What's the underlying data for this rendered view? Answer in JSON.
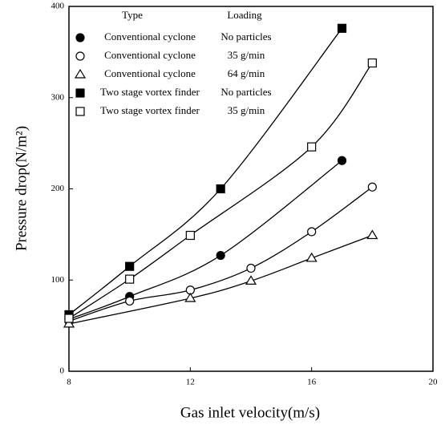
{
  "chart_data": {
    "type": "scatter",
    "xlabel": "Gas inlet velocity(m/s)",
    "ylabel": "Pressure drop(N/m²)",
    "legend_headers": [
      "Type",
      "Loading"
    ],
    "xlim": [
      8,
      20
    ],
    "xticks": [
      8,
      12,
      16,
      20
    ],
    "ylim": [
      0,
      400
    ],
    "yticks": [
      0,
      100,
      200,
      300,
      400
    ],
    "series": [
      {
        "name": "Conventional cyclone",
        "loading": "No particles",
        "marker": "circle",
        "filled": true,
        "color": "#000000",
        "x": [
          8,
          10,
          13,
          17
        ],
        "values": [
          57,
          82,
          127,
          231
        ]
      },
      {
        "name": "Conventional cyclone",
        "loading": "35 g/min",
        "marker": "circle",
        "filled": false,
        "color": "#000000",
        "x": [
          8,
          10,
          12,
          14,
          16,
          18
        ],
        "values": [
          55,
          77,
          89,
          113,
          153,
          202
        ]
      },
      {
        "name": "Conventional cyclone",
        "loading": "64 g/min",
        "marker": "triangle",
        "filled": false,
        "color": "#000000",
        "x": [
          8,
          12,
          14,
          16,
          18
        ],
        "values": [
          52,
          80,
          99,
          124,
          149
        ]
      },
      {
        "name": "Two stage vortex finder",
        "loading": "No particles",
        "marker": "square",
        "filled": true,
        "color": "#000000",
        "x": [
          8,
          10,
          13,
          17
        ],
        "values": [
          62,
          115,
          200,
          376
        ]
      },
      {
        "name": "Two stage vortex finder",
        "loading": "35 g/min",
        "marker": "square",
        "filled": false,
        "color": "#000000",
        "x": [
          8,
          10,
          12,
          16,
          18
        ],
        "values": [
          58,
          101,
          149,
          246,
          338
        ]
      }
    ]
  }
}
